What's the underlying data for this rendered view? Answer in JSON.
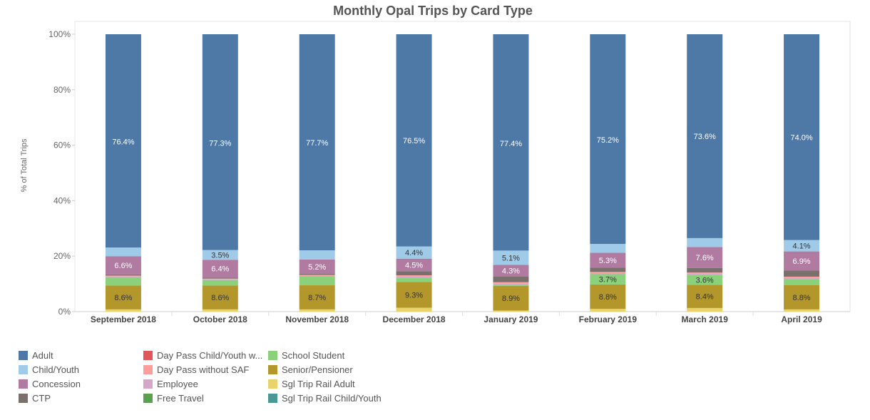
{
  "chart_data": {
    "type": "bar",
    "stacked": true,
    "title": "Monthly Opal Trips by Card Type",
    "xlabel": "",
    "ylabel": "% of Total Trips",
    "ylim": [
      0,
      100
    ],
    "yticks": [
      "0%",
      "20%",
      "40%",
      "60%",
      "80%",
      "100%"
    ],
    "categories": [
      "September 2018",
      "October 2018",
      "November 2018",
      "December 2018",
      "January 2019",
      "February 2019",
      "March 2019",
      "April 2019"
    ],
    "series": [
      {
        "name": "Sgl Trip Rail Adult",
        "color": "#e9d36c",
        "values": [
          0.8,
          0.8,
          0.8,
          1.4,
          0.4,
          1.0,
          1.3,
          0.8
        ]
      },
      {
        "name": "Senior/Pensioner",
        "color": "#b3972b",
        "values": [
          8.6,
          8.6,
          8.7,
          9.3,
          8.9,
          8.8,
          8.4,
          8.8
        ]
      },
      {
        "name": "School Student",
        "color": "#8bd17c",
        "values": [
          3.0,
          2.0,
          3.1,
          1.6,
          0.5,
          3.7,
          3.6,
          2.2
        ]
      },
      {
        "name": "Employee",
        "color": "#d4a6c8",
        "values": [
          0.3,
          0.2,
          0.3,
          0.4,
          0.4,
          0.4,
          0.4,
          0.4
        ]
      },
      {
        "name": "Day Pass without SAF",
        "color": "#ff9d9a",
        "values": [
          0.3,
          0.3,
          0.3,
          0.4,
          0.4,
          0.4,
          0.4,
          0.4
        ]
      },
      {
        "name": "CTP",
        "color": "#79706e",
        "values": [
          0.4,
          0.4,
          0.4,
          1.5,
          2.0,
          1.6,
          1.6,
          2.2
        ]
      },
      {
        "name": "Concession",
        "color": "#b07aa1",
        "values": [
          6.6,
          6.4,
          5.2,
          4.5,
          4.3,
          5.3,
          7.6,
          6.9
        ]
      },
      {
        "name": "Child/Youth",
        "color": "#a0cbe8",
        "values": [
          3.1,
          3.5,
          3.3,
          4.4,
          5.1,
          3.2,
          3.2,
          4.1
        ]
      },
      {
        "name": "Adult",
        "color": "#4e79a7",
        "values": [
          76.4,
          77.3,
          77.7,
          76.5,
          77.4,
          75.2,
          73.6,
          74.0
        ]
      }
    ],
    "legend": [
      {
        "name": "Adult",
        "color": "#4e79a7"
      },
      {
        "name": "Child/Youth",
        "color": "#a0cbe8"
      },
      {
        "name": "Concession",
        "color": "#b07aa1"
      },
      {
        "name": "CTP",
        "color": "#79706e"
      },
      {
        "name": "Day Pass Child/Youth w...",
        "color": "#e15759"
      },
      {
        "name": "Day Pass without SAF",
        "color": "#ff9d9a"
      },
      {
        "name": "Employee",
        "color": "#d4a6c8"
      },
      {
        "name": "Free Travel",
        "color": "#59a14f"
      },
      {
        "name": "School Student",
        "color": "#8bd17c"
      },
      {
        "name": "Senior/Pensioner",
        "color": "#b3972b"
      },
      {
        "name": "Sgl Trip Rail Adult",
        "color": "#e9d36c"
      },
      {
        "name": "Sgl Trip Rail Child/Youth",
        "color": "#499894"
      }
    ],
    "legend_position": "bottom-left",
    "label_threshold": 3.5
  }
}
